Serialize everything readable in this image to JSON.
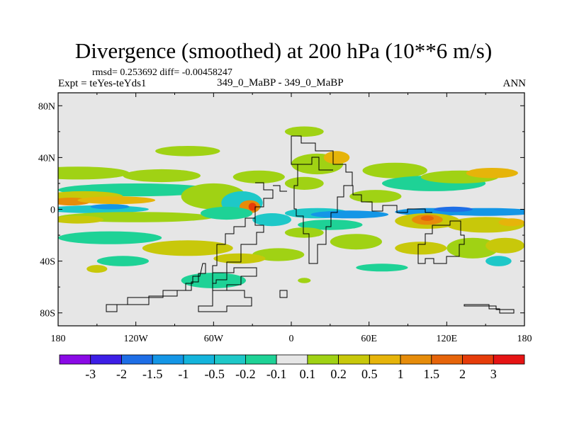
{
  "header": {
    "title": "Divergence (smoothed) at 200 hPa (10**6 m/s)",
    "stats": "rmsd= 0.253692 diff= -0.00458247",
    "expt": "Expt = teYes-teYds1",
    "case": "349_0_MaBP - 349_0_MaBP",
    "season": "ANN"
  },
  "chart_data": {
    "type": "heatmap",
    "title": "Divergence (smoothed) at 200 hPa (10**6 m/s)",
    "xlabel": "",
    "ylabel": "",
    "xlim": [
      -180,
      180
    ],
    "ylim": [
      -90,
      90
    ],
    "x_ticks": [
      {
        "value": -180,
        "label": "180"
      },
      {
        "value": -120,
        "label": "120W"
      },
      {
        "value": -60,
        "label": "60W"
      },
      {
        "value": 0,
        "label": "0"
      },
      {
        "value": 60,
        "label": "60E"
      },
      {
        "value": 120,
        "label": "120E"
      },
      {
        "value": 180,
        "label": "180"
      }
    ],
    "y_ticks": [
      {
        "value": 80,
        "label": "80N"
      },
      {
        "value": 40,
        "label": "40N"
      },
      {
        "value": 0,
        "label": "0"
      },
      {
        "value": -40,
        "label": "40S"
      },
      {
        "value": -80,
        "label": "80S"
      }
    ],
    "colorbar": {
      "labels": [
        "-3",
        "-2",
        "-1.5",
        "-1",
        "-0.5",
        "-0.2",
        "-0.1",
        "0.1",
        "0.2",
        "0.5",
        "1",
        "1.5",
        "2",
        "3"
      ],
      "colors": [
        "#8a0ae6",
        "#3d1ee6",
        "#1e6ee6",
        "#1496e6",
        "#14b4dc",
        "#1ec8c8",
        "#1ed296",
        "#e6e6e6",
        "#a0d214",
        "#c8c80a",
        "#e6b40a",
        "#e68c0a",
        "#e6640a",
        "#e63c0a",
        "#e61414"
      ]
    },
    "blobs": [
      {
        "lon": -165,
        "lat": 28,
        "rx": 40,
        "ry": 5,
        "level": 8
      },
      {
        "lon": -100,
        "lat": 26,
        "rx": 30,
        "ry": 5,
        "level": 8
      },
      {
        "lon": -80,
        "lat": 45,
        "rx": 25,
        "ry": 4,
        "level": 8
      },
      {
        "lon": -120,
        "lat": 15,
        "rx": 60,
        "ry": 5,
        "level": 6
      },
      {
        "lon": -160,
        "lat": 10,
        "rx": 30,
        "ry": 4,
        "level": 9
      },
      {
        "lon": -170,
        "lat": 6,
        "rx": 15,
        "ry": 3,
        "level": 11
      },
      {
        "lon": -135,
        "lat": 7,
        "rx": 30,
        "ry": 3,
        "level": 10
      },
      {
        "lon": -150,
        "lat": 0,
        "rx": 40,
        "ry": 3,
        "level": 5
      },
      {
        "lon": -140,
        "lat": 2,
        "rx": 15,
        "ry": 2,
        "level": 3
      },
      {
        "lon": -120,
        "lat": -6,
        "rx": 60,
        "ry": 4,
        "level": 8
      },
      {
        "lon": -165,
        "lat": -8,
        "rx": 20,
        "ry": 3,
        "level": 9
      },
      {
        "lon": -140,
        "lat": -22,
        "rx": 40,
        "ry": 5,
        "level": 6
      },
      {
        "lon": -80,
        "lat": -30,
        "rx": 35,
        "ry": 6,
        "level": 9
      },
      {
        "lon": -60,
        "lat": 10,
        "rx": 25,
        "ry": 10,
        "level": 8
      },
      {
        "lon": -38,
        "lat": 5,
        "rx": 16,
        "ry": 9,
        "level": 5
      },
      {
        "lon": -32,
        "lat": 2,
        "rx": 8,
        "ry": 5,
        "level": 11
      },
      {
        "lon": -30,
        "lat": 2,
        "rx": 3,
        "ry": 3,
        "level": 13
      },
      {
        "lon": -25,
        "lat": 25,
        "rx": 20,
        "ry": 5,
        "level": 8
      },
      {
        "lon": -50,
        "lat": -3,
        "rx": 20,
        "ry": 5,
        "level": 6
      },
      {
        "lon": -15,
        "lat": -8,
        "rx": 15,
        "ry": 5,
        "level": 5
      },
      {
        "lon": -10,
        "lat": -35,
        "rx": 20,
        "ry": 5,
        "level": 8
      },
      {
        "lon": -40,
        "lat": -38,
        "rx": 20,
        "ry": 4,
        "level": 9
      },
      {
        "lon": -130,
        "lat": -40,
        "rx": 20,
        "ry": 4,
        "level": 6
      },
      {
        "lon": -150,
        "lat": -46,
        "rx": 8,
        "ry": 3,
        "level": 9
      },
      {
        "lon": -60,
        "lat": -55,
        "rx": 25,
        "ry": 6,
        "level": 6
      },
      {
        "lon": 10,
        "lat": 60,
        "rx": 15,
        "ry": 4,
        "level": 8
      },
      {
        "lon": 20,
        "lat": 35,
        "rx": 20,
        "ry": 8,
        "level": 8
      },
      {
        "lon": 35,
        "lat": 40,
        "rx": 10,
        "ry": 5,
        "level": 10
      },
      {
        "lon": 10,
        "lat": 20,
        "rx": 15,
        "ry": 5,
        "level": 8
      },
      {
        "lon": 20,
        "lat": -3,
        "rx": 25,
        "ry": 4,
        "level": 5
      },
      {
        "lon": 45,
        "lat": -4,
        "rx": 30,
        "ry": 3,
        "level": 3
      },
      {
        "lon": 30,
        "lat": -12,
        "rx": 25,
        "ry": 4,
        "level": 6
      },
      {
        "lon": 50,
        "lat": -25,
        "rx": 20,
        "ry": 6,
        "level": 8
      },
      {
        "lon": 10,
        "lat": -18,
        "rx": 15,
        "ry": 4,
        "level": 8
      },
      {
        "lon": 80,
        "lat": 30,
        "rx": 25,
        "ry": 6,
        "level": 8
      },
      {
        "lon": 65,
        "lat": 10,
        "rx": 20,
        "ry": 5,
        "level": 8
      },
      {
        "lon": 110,
        "lat": 20,
        "rx": 40,
        "ry": 6,
        "level": 6
      },
      {
        "lon": 130,
        "lat": 25,
        "rx": 30,
        "ry": 5,
        "level": 8
      },
      {
        "lon": 155,
        "lat": 28,
        "rx": 20,
        "ry": 4,
        "level": 10
      },
      {
        "lon": 110,
        "lat": -2,
        "rx": 30,
        "ry": 3,
        "level": 3
      },
      {
        "lon": 150,
        "lat": -2,
        "rx": 40,
        "ry": 3,
        "level": 3
      },
      {
        "lon": 125,
        "lat": 0,
        "rx": 15,
        "ry": 2,
        "level": 2
      },
      {
        "lon": 105,
        "lat": -9,
        "rx": 25,
        "ry": 6,
        "level": 9
      },
      {
        "lon": 105,
        "lat": -8,
        "rx": 12,
        "ry": 4,
        "level": 11
      },
      {
        "lon": 105,
        "lat": -7,
        "rx": 5,
        "ry": 2,
        "level": 12
      },
      {
        "lon": 150,
        "lat": -12,
        "rx": 30,
        "ry": 6,
        "level": 9
      },
      {
        "lon": 170,
        "lat": -10,
        "rx": 10,
        "ry": 3,
        "level": 10
      },
      {
        "lon": 140,
        "lat": -30,
        "rx": 20,
        "ry": 8,
        "level": 8
      },
      {
        "lon": 165,
        "lat": -28,
        "rx": 15,
        "ry": 6,
        "level": 9
      },
      {
        "lon": 160,
        "lat": -40,
        "rx": 10,
        "ry": 4,
        "level": 5
      },
      {
        "lon": 100,
        "lat": -30,
        "rx": 20,
        "ry": 5,
        "level": 9
      },
      {
        "lon": 70,
        "lat": -45,
        "rx": 20,
        "ry": 3,
        "level": 6
      },
      {
        "lon": 10,
        "lat": -55,
        "rx": 5,
        "ry": 2,
        "level": 8
      }
    ]
  }
}
